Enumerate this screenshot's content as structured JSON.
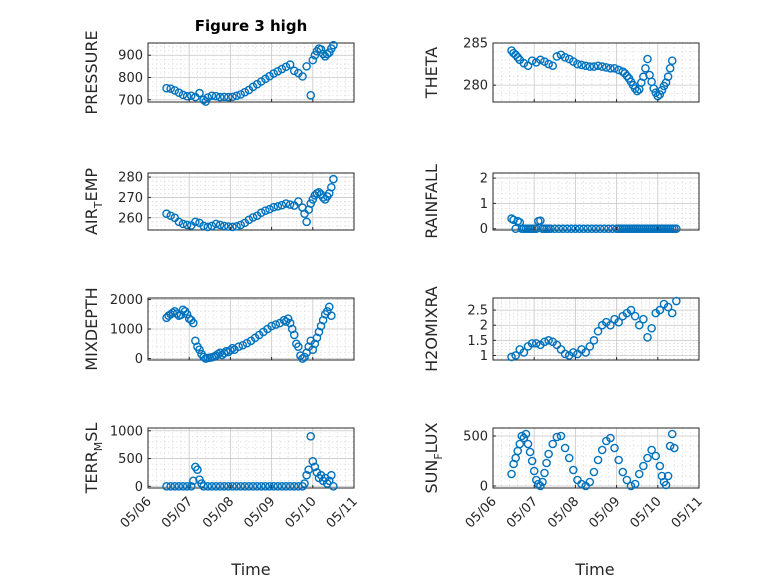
{
  "figure": {
    "title": "Figure 3 high"
  },
  "chart_data": [
    {
      "type": "scatter",
      "id": "pressure",
      "ylabel": "PRESSURE",
      "title": "Figure 3 high",
      "ylim": [
        690,
        955
      ],
      "yticks": [
        700,
        800,
        900
      ],
      "xlim": [
        0,
        5
      ],
      "show_x_ticks": false,
      "x": [
        0.45,
        0.55,
        0.65,
        0.75,
        0.85,
        0.95,
        1.05,
        1.15,
        1.25,
        1.35,
        1.4,
        1.45,
        1.55,
        1.65,
        1.75,
        1.85,
        1.95,
        2.05,
        2.15,
        2.25,
        2.35,
        2.45,
        2.55,
        2.65,
        2.75,
        2.85,
        2.95,
        3.05,
        3.15,
        3.25,
        3.35,
        3.45,
        3.55,
        3.65,
        3.75,
        3.85,
        3.95,
        4.0,
        4.05,
        4.1,
        4.15,
        4.2,
        4.25,
        4.3,
        4.35,
        4.4,
        4.45,
        4.5
      ],
      "y": [
        752,
        750,
        742,
        732,
        722,
        716,
        718,
        712,
        730,
        700,
        692,
        710,
        718,
        716,
        712,
        713,
        712,
        713,
        718,
        724,
        734,
        744,
        758,
        770,
        782,
        794,
        806,
        818,
        828,
        838,
        848,
        858,
        830,
        820,
        805,
        850,
        720,
        878,
        900,
        918,
        930,
        926,
        906,
        895,
        905,
        912,
        930,
        945
      ]
    },
    {
      "type": "scatter",
      "id": "theta",
      "ylabel": "THETA",
      "ylim": [
        278,
        285
      ],
      "yticks": [
        280,
        285
      ],
      "xlim": [
        0,
        5
      ],
      "show_x_ticks": false,
      "x": [
        0.45,
        0.5,
        0.55,
        0.6,
        0.65,
        0.75,
        0.85,
        0.95,
        1.05,
        1.15,
        1.25,
        1.35,
        1.45,
        1.55,
        1.65,
        1.75,
        1.85,
        1.95,
        2.05,
        2.15,
        2.25,
        2.35,
        2.45,
        2.55,
        2.65,
        2.75,
        2.85,
        2.95,
        3.05,
        3.15,
        3.2,
        3.25,
        3.3,
        3.35,
        3.4,
        3.45,
        3.5,
        3.55,
        3.6,
        3.65,
        3.7,
        3.75,
        3.8,
        3.85,
        3.9,
        3.95,
        4.0,
        4.05,
        4.1,
        4.15,
        4.2,
        4.25,
        4.3,
        4.35
      ],
      "y": [
        284.1,
        283.8,
        283.6,
        283.3,
        283.0,
        282.6,
        282.3,
        282.9,
        282.7,
        283.0,
        282.8,
        282.5,
        282.3,
        283.4,
        283.6,
        283.3,
        283.1,
        282.8,
        282.5,
        282.4,
        282.3,
        282.2,
        282.2,
        282.3,
        282.2,
        282.1,
        282.0,
        282.0,
        281.8,
        281.6,
        281.4,
        281.1,
        280.8,
        280.4,
        280.0,
        279.6,
        279.3,
        279.5,
        280.3,
        281.0,
        282.0,
        283.1,
        281.2,
        280.4,
        279.6,
        279.1,
        278.7,
        278.9,
        279.4,
        279.9,
        280.3,
        281.0,
        282.0,
        282.9
      ]
    },
    {
      "type": "scatter",
      "id": "air_temp",
      "ylabel": "AIR_TEMP",
      "ylim": [
        254,
        282
      ],
      "yticks": [
        260,
        270,
        280
      ],
      "xlim": [
        0,
        5
      ],
      "show_x_ticks": false,
      "x": [
        0.45,
        0.55,
        0.65,
        0.75,
        0.85,
        0.95,
        1.05,
        1.15,
        1.25,
        1.35,
        1.45,
        1.55,
        1.65,
        1.75,
        1.85,
        1.95,
        2.05,
        2.15,
        2.25,
        2.35,
        2.45,
        2.55,
        2.65,
        2.75,
        2.85,
        2.95,
        3.05,
        3.15,
        3.25,
        3.35,
        3.45,
        3.55,
        3.65,
        3.75,
        3.8,
        3.85,
        3.9,
        3.95,
        4.0,
        4.05,
        4.1,
        4.15,
        4.2,
        4.25,
        4.3,
        4.35,
        4.4,
        4.45,
        4.5
      ],
      "y": [
        262,
        261,
        260,
        258,
        257,
        256.5,
        256.2,
        258,
        257.5,
        256,
        255.5,
        256,
        257,
        256.5,
        256,
        255.7,
        255.5,
        255.8,
        256.5,
        257.5,
        259,
        260.2,
        261,
        262.5,
        263.5,
        264.2,
        265.2,
        265.6,
        266.2,
        267,
        266.5,
        266,
        268,
        265,
        262,
        258,
        264,
        267,
        269,
        271,
        272,
        272.5,
        271.5,
        270,
        269,
        270.5,
        272,
        275,
        279
      ]
    },
    {
      "type": "scatter",
      "id": "rainfall",
      "ylabel": "RAINFALL",
      "ylim": [
        -0.05,
        2.2
      ],
      "yticks": [
        0,
        1,
        2
      ],
      "xlim": [
        0,
        5
      ],
      "show_x_ticks": false,
      "x": [
        0.45,
        0.5,
        0.55,
        0.6,
        0.65,
        0.7,
        0.75,
        0.8,
        0.85,
        0.9,
        0.95,
        1.0,
        1.05,
        1.1,
        1.15,
        1.2,
        1.25,
        1.3,
        1.35,
        1.4,
        1.5,
        1.6,
        1.7,
        1.8,
        1.9,
        2.0,
        2.1,
        2.2,
        2.3,
        2.4,
        2.5,
        2.6,
        2.7,
        2.8,
        2.9,
        3.0,
        3.05,
        3.1,
        3.15,
        3.2,
        3.25,
        3.3,
        3.35,
        3.4,
        3.45,
        3.5,
        3.55,
        3.6,
        3.65,
        3.7,
        3.75,
        3.8,
        3.85,
        3.9,
        3.95,
        4.0,
        4.05,
        4.1,
        4.15,
        4.2,
        4.25,
        4.3,
        4.35,
        4.4,
        4.45
      ],
      "y": [
        0.4,
        0.35,
        0.0,
        0.3,
        0.25,
        0.0,
        0.0,
        0.0,
        0.0,
        0.0,
        0.0,
        0.0,
        0.0,
        0.3,
        0.32,
        0.0,
        0.0,
        0.0,
        0.0,
        0.0,
        0.0,
        0.0,
        0.0,
        0.0,
        0.0,
        0.0,
        0.0,
        0.0,
        0.0,
        0.0,
        0.0,
        0.0,
        0.0,
        0.0,
        0.0,
        0.0,
        0.0,
        0.0,
        0.0,
        0.0,
        0.0,
        0.0,
        0.0,
        0.0,
        0.0,
        0.0,
        0.0,
        0.0,
        0.0,
        0.0,
        0.0,
        0.0,
        0.0,
        0.0,
        0.0,
        0.0,
        0.0,
        0.0,
        0.0,
        0.0,
        0.0,
        0.0,
        0.0,
        0.0,
        0.0
      ]
    },
    {
      "type": "scatter",
      "id": "mixdepth",
      "ylabel": "MIXDEPTH",
      "ylim": [
        -50,
        2050
      ],
      "yticks": [
        0,
        1000,
        2000
      ],
      "xlim": [
        0,
        5
      ],
      "show_x_ticks": false,
      "x": [
        0.45,
        0.5,
        0.55,
        0.6,
        0.65,
        0.7,
        0.75,
        0.8,
        0.85,
        0.9,
        0.95,
        1.0,
        1.05,
        1.1,
        1.15,
        1.2,
        1.25,
        1.3,
        1.35,
        1.4,
        1.45,
        1.5,
        1.55,
        1.6,
        1.65,
        1.7,
        1.75,
        1.8,
        1.85,
        1.9,
        1.95,
        2.0,
        2.05,
        2.1,
        2.2,
        2.3,
        2.4,
        2.5,
        2.6,
        2.7,
        2.8,
        2.9,
        3.0,
        3.1,
        3.2,
        3.3,
        3.35,
        3.4,
        3.45,
        3.5,
        3.55,
        3.6,
        3.65,
        3.7,
        3.75,
        3.8,
        3.85,
        3.9,
        3.95,
        4.0,
        4.05,
        4.1,
        4.15,
        4.2,
        4.25,
        4.3,
        4.35,
        4.4,
        4.45
      ],
      "y": [
        1380,
        1450,
        1500,
        1550,
        1600,
        1520,
        1450,
        1480,
        1650,
        1600,
        1500,
        1350,
        1300,
        1200,
        600,
        400,
        300,
        150,
        50,
        0,
        20,
        30,
        40,
        60,
        100,
        150,
        200,
        120,
        180,
        250,
        220,
        280,
        350,
        300,
        400,
        450,
        520,
        600,
        700,
        800,
        900,
        1000,
        1100,
        1150,
        1200,
        1300,
        1250,
        1350,
        1200,
        1000,
        800,
        500,
        400,
        100,
        0,
        50,
        200,
        400,
        600,
        300,
        500,
        700,
        900,
        1100,
        1300,
        1500,
        1600,
        1750,
        1450
      ]
    },
    {
      "type": "scatter",
      "id": "h2omixra",
      "ylabel": "H2OMIXRA",
      "ylim": [
        0.85,
        2.9
      ],
      "yticks": [
        1,
        1.5,
        2,
        2.5
      ],
      "xlim": [
        0,
        5
      ],
      "show_x_ticks": false,
      "x": [
        0.45,
        0.55,
        0.65,
        0.75,
        0.85,
        0.95,
        1.05,
        1.15,
        1.25,
        1.35,
        1.45,
        1.55,
        1.65,
        1.75,
        1.85,
        1.95,
        2.05,
        2.15,
        2.25,
        2.35,
        2.45,
        2.55,
        2.65,
        2.75,
        2.85,
        2.95,
        3.05,
        3.15,
        3.25,
        3.35,
        3.45,
        3.55,
        3.65,
        3.75,
        3.85,
        3.95,
        4.05,
        4.15,
        4.25,
        4.35,
        4.45
      ],
      "y": [
        0.95,
        1.0,
        1.2,
        1.1,
        1.3,
        1.4,
        1.4,
        1.35,
        1.45,
        1.5,
        1.45,
        1.35,
        1.2,
        1.05,
        1.0,
        1.1,
        1.05,
        1.2,
        1.1,
        1.3,
        1.5,
        1.8,
        2.0,
        2.1,
        2.0,
        2.2,
        2.1,
        2.3,
        2.4,
        2.5,
        2.3,
        2.0,
        2.2,
        1.6,
        1.9,
        2.4,
        2.5,
        2.7,
        2.6,
        2.4,
        2.8
      ]
    },
    {
      "type": "scatter",
      "id": "terr_msl",
      "ylabel": "TERR_MSL",
      "ylim": [
        -30,
        1050
      ],
      "yticks": [
        0,
        500,
        1000
      ],
      "xlim": [
        0,
        5
      ],
      "show_x_ticks": true,
      "x": [
        0.45,
        0.55,
        0.65,
        0.75,
        0.85,
        0.95,
        1.05,
        1.1,
        1.15,
        1.2,
        1.25,
        1.3,
        1.35,
        1.45,
        1.55,
        1.65,
        1.75,
        1.85,
        1.95,
        2.05,
        2.15,
        2.25,
        2.35,
        2.45,
        2.55,
        2.65,
        2.75,
        2.85,
        2.95,
        3.05,
        3.15,
        3.25,
        3.35,
        3.45,
        3.55,
        3.65,
        3.75,
        3.8,
        3.85,
        3.9,
        3.95,
        4.0,
        4.05,
        4.1,
        4.15,
        4.2,
        4.25,
        4.3,
        4.35,
        4.4,
        4.45,
        4.5
      ],
      "y": [
        0,
        0,
        0,
        0,
        0,
        0,
        0,
        100,
        350,
        300,
        120,
        50,
        0,
        0,
        0,
        0,
        0,
        0,
        0,
        0,
        0,
        0,
        0,
        0,
        0,
        0,
        0,
        0,
        0,
        0,
        0,
        0,
        0,
        0,
        0,
        0,
        0,
        50,
        200,
        300,
        900,
        450,
        350,
        250,
        150,
        200,
        100,
        150,
        50,
        100,
        200,
        0
      ]
    },
    {
      "type": "scatter",
      "id": "sun_flux",
      "ylabel": "SUN_FLUX",
      "ylim": [
        -20,
        580
      ],
      "yticks": [
        0,
        500
      ],
      "xlim": [
        0,
        5
      ],
      "show_x_ticks": true,
      "x": [
        0.45,
        0.5,
        0.55,
        0.6,
        0.65,
        0.7,
        0.75,
        0.8,
        0.85,
        0.9,
        0.95,
        1.0,
        1.05,
        1.1,
        1.15,
        1.2,
        1.25,
        1.3,
        1.35,
        1.45,
        1.55,
        1.65,
        1.75,
        1.85,
        1.95,
        2.05,
        2.15,
        2.25,
        2.35,
        2.45,
        2.55,
        2.65,
        2.75,
        2.85,
        2.95,
        3.05,
        3.15,
        3.25,
        3.35,
        3.45,
        3.55,
        3.65,
        3.75,
        3.85,
        3.95,
        4.05,
        4.1,
        4.15,
        4.2,
        4.25,
        4.3,
        4.35,
        4.4
      ],
      "y": [
        120,
        220,
        280,
        350,
        420,
        500,
        480,
        520,
        420,
        340,
        250,
        150,
        60,
        20,
        0,
        40,
        130,
        230,
        320,
        420,
        490,
        500,
        380,
        280,
        160,
        60,
        20,
        0,
        40,
        140,
        260,
        360,
        450,
        480,
        380,
        260,
        140,
        60,
        0,
        20,
        120,
        200,
        280,
        360,
        300,
        200,
        100,
        40,
        10,
        100,
        400,
        520,
        380
      ]
    }
  ],
  "axes": {
    "x_tick_labels": [
      "05/06",
      "05/07",
      "05/08",
      "05/09",
      "05/10",
      "05/11"
    ],
    "x_label": "Time"
  }
}
